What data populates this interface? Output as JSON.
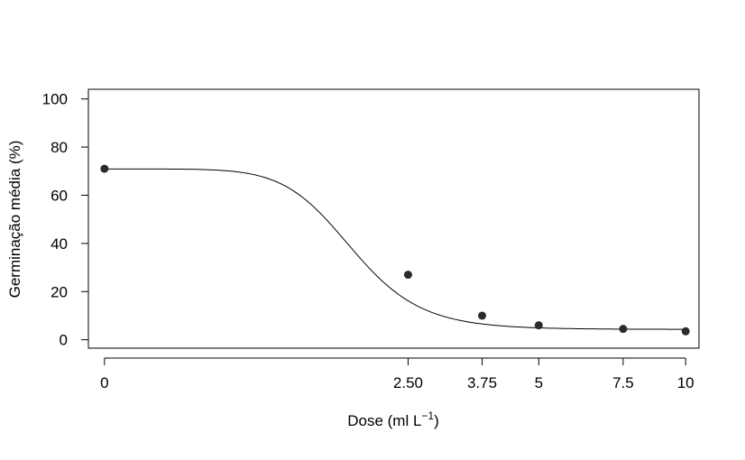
{
  "chart_data": {
    "type": "scatter",
    "title": "",
    "xlabel": "Dose (ml L",
    "xlabel_sup": "−1",
    "xlabel_end": ")",
    "ylabel": "Germinação média (%)",
    "ylim": [
      -3.5,
      104
    ],
    "yticks": [
      0,
      20,
      40,
      60,
      80,
      100
    ],
    "ytick_labels": [
      "0",
      "20",
      "40",
      "60",
      "80",
      "100"
    ],
    "x_scale": "log(dose + 1)",
    "xlim": [
      -0.0663,
      2.453
    ],
    "xticks": [
      0,
      2.5,
      3.75,
      5,
      7.5,
      10
    ],
    "xtick_labels": [
      "0",
      "2.50",
      "3.75",
      "5",
      "7.5",
      "10"
    ],
    "grid": false,
    "marker_color": "#2b2b2b",
    "series": [
      {
        "x": [
          0,
          2.5,
          3.75,
          5,
          7.5,
          10
        ],
        "y": [
          71,
          27,
          10,
          6,
          4.5,
          3.5
        ],
        "fit": "log-logistic",
        "fit_params": {
          "lower": 4.3,
          "upper": 70.9,
          "ed50": 1.78,
          "slope": 4.5
        }
      }
    ]
  }
}
